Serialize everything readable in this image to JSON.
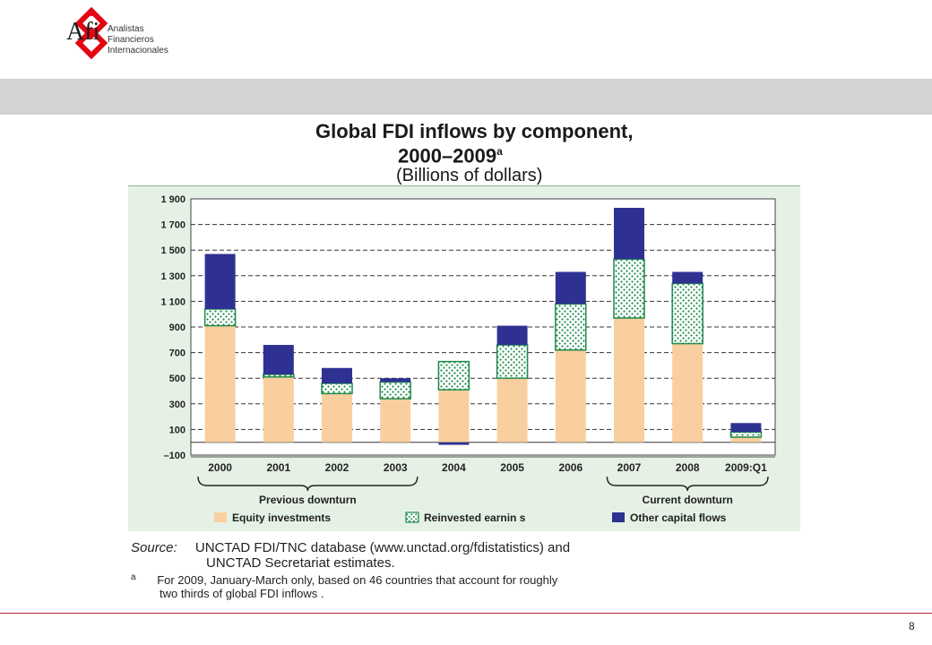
{
  "logo": {
    "name": "Afi",
    "sub_lines": [
      "Analistas",
      "Financieros",
      "Internacionales"
    ],
    "color": "#e30613"
  },
  "chart_text": {
    "title_line1": "Global FDI inflows by component,",
    "title_line2": "2000–2009",
    "title_superscript": "a",
    "title_line3": "(Billions of dollars)"
  },
  "chart_data": {
    "type": "bar",
    "stacked": true,
    "categories": [
      "2000",
      "2001",
      "2002",
      "2003",
      "2004",
      "2005",
      "2006",
      "2007",
      "2008",
      "2009:Q1"
    ],
    "series": [
      {
        "name": "Equity investments",
        "values": [
          910,
          510,
          380,
          340,
          410,
          500,
          720,
          970,
          770,
          40
        ],
        "color": "#f9cfa0"
      },
      {
        "name": "Reinvested earnin s",
        "values": [
          130,
          20,
          80,
          130,
          220,
          260,
          360,
          460,
          470,
          40
        ],
        "color": "#e8f3ea",
        "pattern": "dotted-green",
        "border": "#1f8a4c"
      },
      {
        "name": "Other capital flows",
        "values": [
          430,
          230,
          120,
          30,
          -20,
          150,
          250,
          400,
          90,
          70
        ],
        "color": "#2e3192"
      }
    ],
    "y_ticks": [
      -100,
      100,
      300,
      500,
      700,
      900,
      1100,
      1300,
      1500,
      1700,
      1900
    ],
    "y_tick_labels": [
      "–100",
      "100",
      "300",
      "500",
      "700",
      "900",
      "1 100",
      "1 300",
      "1 500",
      "1 700",
      "1 900"
    ],
    "ylim": [
      -100,
      1900
    ],
    "grid": "dashed",
    "legend": "bottom",
    "annotations": [
      {
        "text": "Previous downturn",
        "spans": [
          "2000",
          "2003"
        ]
      },
      {
        "text": "Current downturn",
        "spans": [
          "2007",
          "2009:Q1"
        ]
      }
    ]
  },
  "source_text": {
    "label": "Source:",
    "line1": "UNCTAD FDI/TNC database (www.unctad.org/fdistatistics) and",
    "line2": "UNCTAD Secretariat estimates.",
    "note_marker": "a",
    "note_line1": "For 2009, January-March only, based on 46 countries that account for roughly",
    "note_line2": "two thirds of global FDI inflows ."
  },
  "page": {
    "number": "8"
  }
}
